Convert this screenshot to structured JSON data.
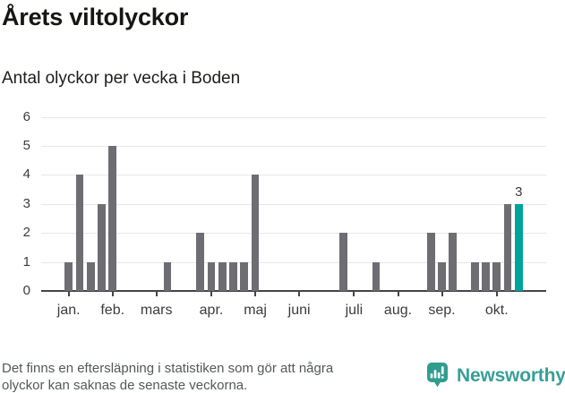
{
  "header": {
    "title": "Årets viltolyckor",
    "subtitle": "Antal olyckor per vecka i Boden"
  },
  "chart_data": {
    "type": "bar",
    "title": "Årets viltolyckor",
    "subtitle": "Antal olyckor per vecka i Boden",
    "xlabel": "",
    "ylabel": "Antal olyckor per vecka",
    "x_unit": "week-of-year",
    "x_start_week": 1,
    "values": [
      0,
      0,
      1,
      4,
      1,
      3,
      5,
      0,
      0,
      0,
      0,
      1,
      0,
      0,
      2,
      1,
      1,
      1,
      1,
      4,
      0,
      0,
      0,
      0,
      0,
      0,
      0,
      2,
      0,
      0,
      1,
      0,
      0,
      0,
      0,
      2,
      1,
      2,
      0,
      1,
      1,
      1,
      3,
      3,
      0,
      0
    ],
    "highlight_index": 43,
    "highlight_value": 3,
    "highlight_label": "3",
    "ylim": [
      0,
      6
    ],
    "yticks": [
      0,
      1,
      2,
      3,
      4,
      5,
      6
    ],
    "grid": true,
    "legend": null,
    "month_ticks": [
      {
        "label": "jan.",
        "slot": 2
      },
      {
        "label": "feb.",
        "slot": 6
      },
      {
        "label": "mars",
        "slot": 10
      },
      {
        "label": "apr.",
        "slot": 15
      },
      {
        "label": "maj",
        "slot": 19
      },
      {
        "label": "juni",
        "slot": 23
      },
      {
        "label": "juli",
        "slot": 28
      },
      {
        "label": "aug.",
        "slot": 32
      },
      {
        "label": "sep.",
        "slot": 36
      },
      {
        "label": "okt.",
        "slot": 41
      }
    ],
    "colors": {
      "bar": "#6d6d72",
      "highlight": "#00a39c",
      "grid": "#e8e8e8",
      "axis": "#454547",
      "tick_label": "#3c3c3c"
    }
  },
  "footer": {
    "note_line1": "Det finns en eftersläpning i statistiken som gör att några",
    "note_line2": "olyckor kan saknas de senaste veckorna.",
    "brand": "Newsworthy"
  },
  "icons": {
    "brand_logo": "newsworthy-bar-chart-speech-bubble-icon"
  }
}
